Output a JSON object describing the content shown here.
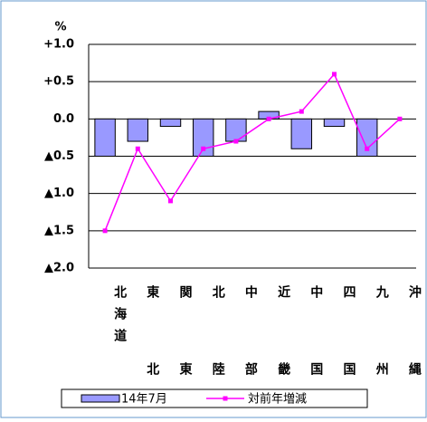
{
  "chart_data": {
    "type": "bar_line",
    "y_unit": "%",
    "categories": [
      "北海道",
      "東北",
      "関東",
      "北陸",
      "中部",
      "近畿",
      "中国",
      "四国",
      "九州",
      "沖縄"
    ],
    "series": [
      {
        "name": "14年7月",
        "type": "bar",
        "color": "#9999ff",
        "values": [
          -0.5,
          -0.3,
          -0.1,
          -0.5,
          -0.3,
          0.1,
          -0.4,
          -0.1,
          -0.5,
          0
        ]
      },
      {
        "name": "対前年増減",
        "type": "line",
        "color": "#ff00ff",
        "values": [
          -1.5,
          -0.4,
          -1.1,
          -0.4,
          -0.3,
          0.0,
          0.1,
          0.6,
          -0.4,
          0.0
        ]
      }
    ],
    "ylim": [
      -2,
      1
    ],
    "yticks": [
      {
        "value": 1,
        "label": "+1.0"
      },
      {
        "value": 0.5,
        "label": "+0.5"
      },
      {
        "value": 0,
        "label": "0.0"
      },
      {
        "value": -0.5,
        "label": "▲0.5"
      },
      {
        "value": -1,
        "label": "▲1.0"
      },
      {
        "value": -1.5,
        "label": "▲1.5"
      },
      {
        "value": -2,
        "label": "▲2.0"
      }
    ],
    "grid": true
  }
}
